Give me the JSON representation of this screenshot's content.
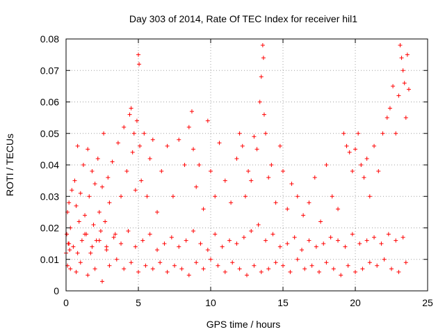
{
  "chart_data": {
    "type": "scatter",
    "title": "Day 303 of 2014, Rate Of TEC Index for receiver hil1",
    "xlabel": "GPS time / hours",
    "ylabel": "ROTI / TECUs",
    "xlim": [
      0,
      25
    ],
    "ylim": [
      0,
      0.08
    ],
    "x_ticks": [
      0,
      5,
      10,
      15,
      20,
      25
    ],
    "y_ticks": [
      0,
      0.01,
      0.02,
      0.03,
      0.04,
      0.05,
      0.06,
      0.07,
      0.08
    ],
    "x_tick_labels": [
      "0",
      "5",
      "10",
      "15",
      "20",
      "25"
    ],
    "y_tick_labels": [
      "0",
      "0.01",
      "0.02",
      "0.03",
      "0.04",
      "0.05",
      "0.06",
      "0.07",
      "0.08"
    ],
    "grid": true,
    "legend": "none",
    "marker": "plus",
    "series_color": "#ff0000",
    "series": [
      {
        "x": [
          0.0,
          0.05,
          0.1,
          0.15,
          0.2,
          0.25,
          0.3,
          0.4,
          0.5,
          0.6,
          0.7,
          0.8,
          0.9,
          1.0,
          1.1,
          1.2,
          1.3,
          1.4,
          1.5,
          1.6,
          1.7,
          1.8,
          1.9,
          2.0,
          2.1,
          2.2,
          2.3,
          2.4,
          2.5,
          2.6,
          2.7,
          2.8,
          2.9,
          3.0,
          3.2,
          3.4,
          3.6,
          3.8,
          4.0,
          4.2,
          4.4,
          4.5,
          4.6,
          4.7,
          4.8,
          4.9,
          5.0,
          5.05,
          5.1,
          5.2,
          5.4,
          5.6,
          5.8,
          6.0,
          6.3,
          6.6,
          7.0,
          7.4,
          7.8,
          8.2,
          8.5,
          8.7,
          8.8,
          9.0,
          9.2,
          9.5,
          9.8,
          10.0,
          10.3,
          10.6,
          11.0,
          11.4,
          11.8,
          12.0,
          12.2,
          12.4,
          12.6,
          12.8,
          13.0,
          13.2,
          13.4,
          13.5,
          13.6,
          13.65,
          13.7,
          13.8,
          14.0,
          14.2,
          14.5,
          14.8,
          15.0,
          15.3,
          15.6,
          16.0,
          16.4,
          16.8,
          17.2,
          17.6,
          18.0,
          18.4,
          18.8,
          19.2,
          19.4,
          19.6,
          19.8,
          20.0,
          20.2,
          20.4,
          20.6,
          20.8,
          21.0,
          21.3,
          21.6,
          21.9,
          22.2,
          22.4,
          22.6,
          22.8,
          23.0,
          23.1,
          23.2,
          23.3,
          23.4,
          23.5,
          23.6,
          23.7,
          0.1,
          0.3,
          0.7,
          1.0,
          1.5,
          2.0,
          2.5,
          3.0,
          3.5,
          4.0,
          4.5,
          5.0,
          5.5,
          6.0,
          6.5,
          7.0,
          7.5,
          8.0,
          8.5,
          9.0,
          9.5,
          10.0,
          10.5,
          11.0,
          11.5,
          12.0,
          12.5,
          13.0,
          13.5,
          14.0,
          14.5,
          15.0,
          15.5,
          16.0,
          16.5,
          17.0,
          17.5,
          18.0,
          18.5,
          19.0,
          19.5,
          20.0,
          20.5,
          21.0,
          21.5,
          22.0,
          22.5,
          23.0,
          23.5,
          0.2,
          0.8,
          1.3,
          1.8,
          2.3,
          2.8,
          3.3,
          3.8,
          4.3,
          4.8,
          5.3,
          5.8,
          6.3,
          6.8,
          7.3,
          7.8,
          8.3,
          8.8,
          9.3,
          9.8,
          10.3,
          10.8,
          11.3,
          11.8,
          12.3,
          12.8,
          13.3,
          13.8,
          14.3,
          14.8,
          15.3,
          15.8,
          16.3,
          16.8,
          17.3,
          17.8,
          18.3,
          18.8,
          19.3,
          19.8,
          20.3,
          20.8,
          21.3,
          21.8,
          22.3,
          22.8,
          23.3
        ],
        "y": [
          0.012,
          0.018,
          0.025,
          0.015,
          0.028,
          0.013,
          0.02,
          0.032,
          0.014,
          0.035,
          0.027,
          0.046,
          0.022,
          0.031,
          0.016,
          0.04,
          0.024,
          0.018,
          0.045,
          0.03,
          0.012,
          0.038,
          0.021,
          0.034,
          0.016,
          0.042,
          0.025,
          0.019,
          0.033,
          0.05,
          0.022,
          0.014,
          0.036,
          0.028,
          0.041,
          0.018,
          0.047,
          0.03,
          0.052,
          0.038,
          0.056,
          0.058,
          0.044,
          0.05,
          0.032,
          0.054,
          0.075,
          0.072,
          0.046,
          0.035,
          0.05,
          0.03,
          0.042,
          0.048,
          0.025,
          0.038,
          0.046,
          0.03,
          0.048,
          0.04,
          0.052,
          0.057,
          0.045,
          0.033,
          0.04,
          0.026,
          0.054,
          0.038,
          0.03,
          0.047,
          0.035,
          0.028,
          0.042,
          0.05,
          0.046,
          0.03,
          0.038,
          0.035,
          0.049,
          0.045,
          0.06,
          0.068,
          0.078,
          0.074,
          0.056,
          0.05,
          0.036,
          0.04,
          0.028,
          0.046,
          0.038,
          0.026,
          0.034,
          0.03,
          0.024,
          0.028,
          0.036,
          0.022,
          0.04,
          0.03,
          0.026,
          0.05,
          0.046,
          0.044,
          0.038,
          0.045,
          0.05,
          0.04,
          0.036,
          0.042,
          0.03,
          0.046,
          0.038,
          0.05,
          0.055,
          0.058,
          0.065,
          0.05,
          0.062,
          0.078,
          0.074,
          0.07,
          0.066,
          0.055,
          0.075,
          0.064,
          0.008,
          0.007,
          0.006,
          0.009,
          0.005,
          0.007,
          0.003,
          0.008,
          0.01,
          0.007,
          0.009,
          0.006,
          0.008,
          0.007,
          0.009,
          0.006,
          0.008,
          0.007,
          0.005,
          0.009,
          0.007,
          0.01,
          0.008,
          0.006,
          0.009,
          0.007,
          0.005,
          0.008,
          0.006,
          0.007,
          0.009,
          0.008,
          0.006,
          0.01,
          0.007,
          0.008,
          0.006,
          0.009,
          0.007,
          0.005,
          0.008,
          0.006,
          0.007,
          0.009,
          0.008,
          0.01,
          0.007,
          0.006,
          0.009,
          0.015,
          0.012,
          0.018,
          0.014,
          0.016,
          0.013,
          0.017,
          0.015,
          0.019,
          0.014,
          0.016,
          0.018,
          0.013,
          0.015,
          0.017,
          0.014,
          0.016,
          0.019,
          0.015,
          0.013,
          0.018,
          0.014,
          0.016,
          0.015,
          0.017,
          0.019,
          0.021,
          0.016,
          0.018,
          0.014,
          0.015,
          0.017,
          0.013,
          0.016,
          0.014,
          0.015,
          0.017,
          0.016,
          0.014,
          0.018,
          0.015,
          0.016,
          0.017,
          0.015,
          0.018,
          0.016,
          0.017
        ]
      }
    ]
  }
}
